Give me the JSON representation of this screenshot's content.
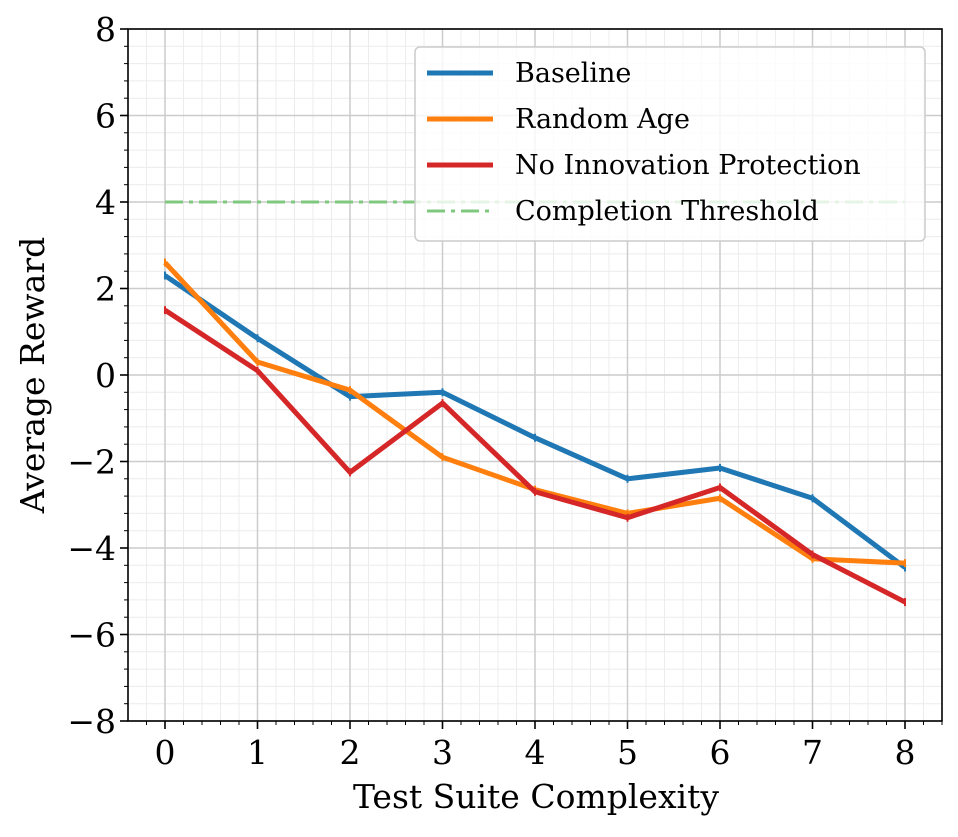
{
  "chart_data": {
    "type": "line",
    "xlabel": "Test Suite Complexity",
    "ylabel": "Average Reward",
    "x": [
      0,
      1,
      2,
      3,
      4,
      5,
      6,
      7,
      8
    ],
    "xlim": [
      -0.4,
      8.4
    ],
    "ylim": [
      -8,
      8
    ],
    "xticks": [
      0,
      1,
      2,
      3,
      4,
      5,
      6,
      7,
      8
    ],
    "yticks": [
      -8,
      -6,
      -4,
      -2,
      0,
      2,
      4,
      6,
      8
    ],
    "xtick_labels": [
      "0",
      "1",
      "2",
      "3",
      "4",
      "5",
      "6",
      "7",
      "8"
    ],
    "ytick_labels": [
      "−8",
      "−6",
      "−4",
      "−2",
      "0",
      "2",
      "4",
      "6",
      "8"
    ],
    "grid": true,
    "legend_position": "top-right",
    "series": [
      {
        "name": "Baseline",
        "color": "#1f77b4",
        "style": "solid",
        "values": [
          2.3,
          0.85,
          -0.5,
          -0.4,
          -1.45,
          -2.4,
          -2.15,
          -2.85,
          -4.45
        ]
      },
      {
        "name": "Random Age",
        "color": "#ff7f0e",
        "style": "solid",
        "values": [
          2.6,
          0.3,
          -0.35,
          -1.9,
          -2.65,
          -3.2,
          -2.85,
          -4.25,
          -4.35
        ]
      },
      {
        "name": "No Innovation Protection",
        "color": "#d62728",
        "style": "solid",
        "values": [
          1.5,
          0.1,
          -2.25,
          -0.65,
          -2.7,
          -3.3,
          -2.6,
          -4.15,
          -5.25
        ]
      },
      {
        "name": "Completion Threshold",
        "color": "#7fc97f",
        "style": "dashdot",
        "values": [
          4,
          4,
          4,
          4,
          4,
          4,
          4,
          4,
          4
        ]
      }
    ]
  }
}
